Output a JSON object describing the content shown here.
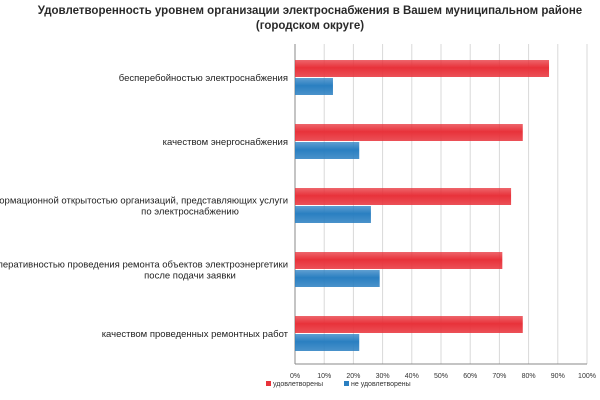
{
  "chart_data": {
    "type": "bar",
    "orientation": "horizontal",
    "title": "Удовлетворенность уровнем организации электроснабжения в Вашем муниципальном районе (городском округе)",
    "categories": [
      "бесперебойностью электроснабжения",
      "качеством энергоснабжения",
      "информационной открытостью организаций, представляющих услуги по электроснабжению",
      "оперативностью проведения ремонта объектов электроэнергетики после подачи заявки",
      "качеством проведенных ремонтных работ"
    ],
    "series": [
      {
        "name": "удовлетворены",
        "color": "#e8323a",
        "values": [
          87,
          78,
          74,
          71,
          78
        ]
      },
      {
        "name": "не удовлетворены",
        "color": "#2a7fc1",
        "values": [
          13,
          22,
          26,
          29,
          22
        ]
      }
    ],
    "xlim": [
      0,
      100
    ],
    "x_ticks": [
      "0%",
      "10%",
      "20%",
      "30%",
      "40%",
      "50%",
      "60%",
      "70%",
      "80%",
      "90%",
      "100%"
    ],
    "grid": true,
    "legend_position": "bottom"
  }
}
